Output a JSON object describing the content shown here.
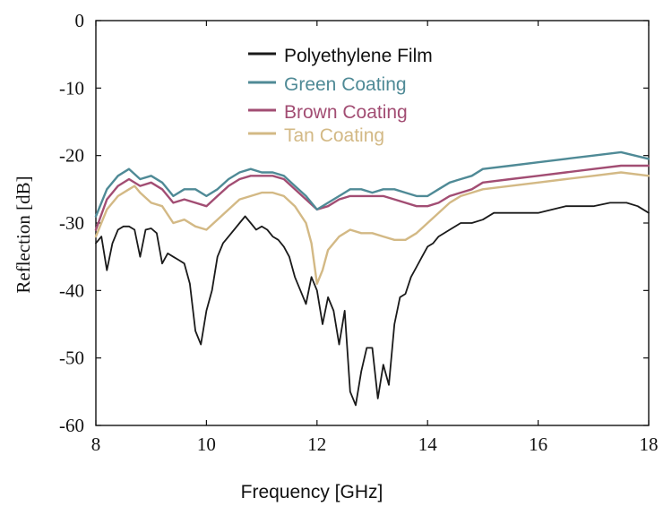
{
  "chart_data": {
    "type": "line",
    "xlabel": "Frequency [GHz]",
    "ylabel": "Reflection [dB]",
    "xlim": [
      8,
      18
    ],
    "ylim": [
      -60,
      0
    ],
    "x_ticks": [
      8,
      10,
      12,
      14,
      16,
      18
    ],
    "y_ticks": [
      0,
      -10,
      -20,
      -30,
      -40,
      -50,
      -60
    ],
    "grid": false,
    "legend_position": "top-center",
    "series": [
      {
        "name": "Polyethylene Film",
        "color": "#1a1a1a",
        "x": [
          8.0,
          8.1,
          8.2,
          8.3,
          8.4,
          8.5,
          8.6,
          8.7,
          8.8,
          8.9,
          9.0,
          9.1,
          9.2,
          9.3,
          9.4,
          9.5,
          9.6,
          9.7,
          9.8,
          9.9,
          10.0,
          10.1,
          10.2,
          10.3,
          10.4,
          10.5,
          10.6,
          10.7,
          10.8,
          10.9,
          11.0,
          11.1,
          11.2,
          11.3,
          11.4,
          11.5,
          11.6,
          11.7,
          11.8,
          11.9,
          12.0,
          12.1,
          12.2,
          12.3,
          12.4,
          12.5,
          12.6,
          12.7,
          12.8,
          12.9,
          13.0,
          13.1,
          13.2,
          13.3,
          13.4,
          13.5,
          13.6,
          13.7,
          13.8,
          13.9,
          14.0,
          14.1,
          14.2,
          14.4,
          14.6,
          14.8,
          15.0,
          15.2,
          15.5,
          16.0,
          16.5,
          17.0,
          17.3,
          17.6,
          17.8,
          18.0
        ],
        "values": [
          -33,
          -32,
          -37,
          -33,
          -31,
          -30.5,
          -30.5,
          -31,
          -35,
          -31,
          -30.8,
          -31.5,
          -36,
          -34.5,
          -35,
          -35.5,
          -36,
          -39,
          -46,
          -48,
          -43,
          -40,
          -35,
          -33,
          -32,
          -31,
          -30,
          -29,
          -30,
          -31,
          -30.5,
          -31,
          -32,
          -32.5,
          -33.5,
          -35,
          -38,
          -40,
          -42,
          -38,
          -40,
          -45,
          -41,
          -43,
          -48,
          -43,
          -55,
          -57,
          -52,
          -48.5,
          -48.5,
          -56,
          -51,
          -54,
          -45,
          -41,
          -40.5,
          -38,
          -36.5,
          -35,
          -33.5,
          -33,
          -32,
          -31,
          -30,
          -30,
          -29.5,
          -28.5,
          -28.5,
          -28.5,
          -27.5,
          -27.5,
          -27,
          -27,
          -27.5,
          -28.5
        ]
      },
      {
        "name": "Green Coating",
        "color": "#4f8a96",
        "x": [
          8.0,
          8.2,
          8.4,
          8.6,
          8.8,
          9.0,
          9.2,
          9.4,
          9.6,
          9.8,
          10.0,
          10.2,
          10.4,
          10.6,
          10.8,
          11.0,
          11.2,
          11.4,
          11.6,
          11.8,
          12.0,
          12.2,
          12.4,
          12.6,
          12.8,
          13.0,
          13.2,
          13.4,
          13.6,
          13.8,
          14.0,
          14.2,
          14.4,
          14.6,
          14.8,
          15.0,
          15.5,
          16.0,
          16.5,
          17.0,
          17.5,
          18.0
        ],
        "values": [
          -29,
          -25,
          -23,
          -22,
          -23.5,
          -23,
          -24,
          -26,
          -25,
          -25,
          -26,
          -25,
          -23.5,
          -22.5,
          -22,
          -22.5,
          -22.5,
          -23,
          -24.5,
          -26,
          -28,
          -27,
          -26,
          -25,
          -25,
          -25.5,
          -25,
          -25,
          -25.5,
          -26,
          -26,
          -25,
          -24,
          -23.5,
          -23,
          -22,
          -21.5,
          -21,
          -20.5,
          -20,
          -19.5,
          -20.5
        ]
      },
      {
        "name": "Brown Coating",
        "color": "#a24d73",
        "x": [
          8.0,
          8.2,
          8.4,
          8.6,
          8.8,
          9.0,
          9.2,
          9.4,
          9.6,
          9.8,
          10.0,
          10.2,
          10.4,
          10.6,
          10.8,
          11.0,
          11.2,
          11.4,
          11.6,
          11.8,
          12.0,
          12.2,
          12.4,
          12.6,
          12.8,
          13.0,
          13.2,
          13.4,
          13.6,
          13.8,
          14.0,
          14.2,
          14.4,
          14.6,
          14.8,
          15.0,
          15.5,
          16.0,
          16.5,
          17.0,
          17.5,
          18.0
        ],
        "values": [
          -31,
          -26.5,
          -24.5,
          -23.5,
          -24.5,
          -24,
          -25,
          -27,
          -26.5,
          -27,
          -27.5,
          -26,
          -24.5,
          -23.5,
          -23,
          -23,
          -23,
          -23.5,
          -25,
          -26.5,
          -28,
          -27.5,
          -26.5,
          -26,
          -26,
          -26,
          -26,
          -26.5,
          -27,
          -27.5,
          -27.5,
          -27,
          -26,
          -25.5,
          -25,
          -24,
          -23.5,
          -23,
          -22.5,
          -22,
          -21.5,
          -21.5
        ]
      },
      {
        "name": "Tan Coating",
        "color": "#d3b985",
        "x": [
          8.0,
          8.2,
          8.4,
          8.6,
          8.7,
          8.8,
          9.0,
          9.2,
          9.4,
          9.6,
          9.8,
          10.0,
          10.2,
          10.4,
          10.6,
          10.8,
          11.0,
          11.2,
          11.4,
          11.6,
          11.8,
          11.9,
          12.0,
          12.1,
          12.2,
          12.3,
          12.4,
          12.6,
          12.8,
          13.0,
          13.2,
          13.4,
          13.6,
          13.8,
          14.0,
          14.2,
          14.4,
          14.6,
          14.8,
          15.0,
          15.5,
          16.0,
          16.5,
          17.0,
          17.5,
          18.0
        ],
        "values": [
          -32,
          -28,
          -26,
          -25,
          -24.5,
          -25.5,
          -27,
          -27.5,
          -30,
          -29.5,
          -30.5,
          -31,
          -29.5,
          -28,
          -26.5,
          -26,
          -25.5,
          -25.5,
          -26,
          -27.5,
          -30,
          -33,
          -39,
          -37,
          -34,
          -33,
          -32,
          -31,
          -31.5,
          -31.5,
          -32,
          -32.5,
          -32.5,
          -31.5,
          -30,
          -28.5,
          -27,
          -26,
          -25.5,
          -25,
          -24.5,
          -24,
          -23.5,
          -23,
          -22.5,
          -23
        ]
      }
    ]
  }
}
